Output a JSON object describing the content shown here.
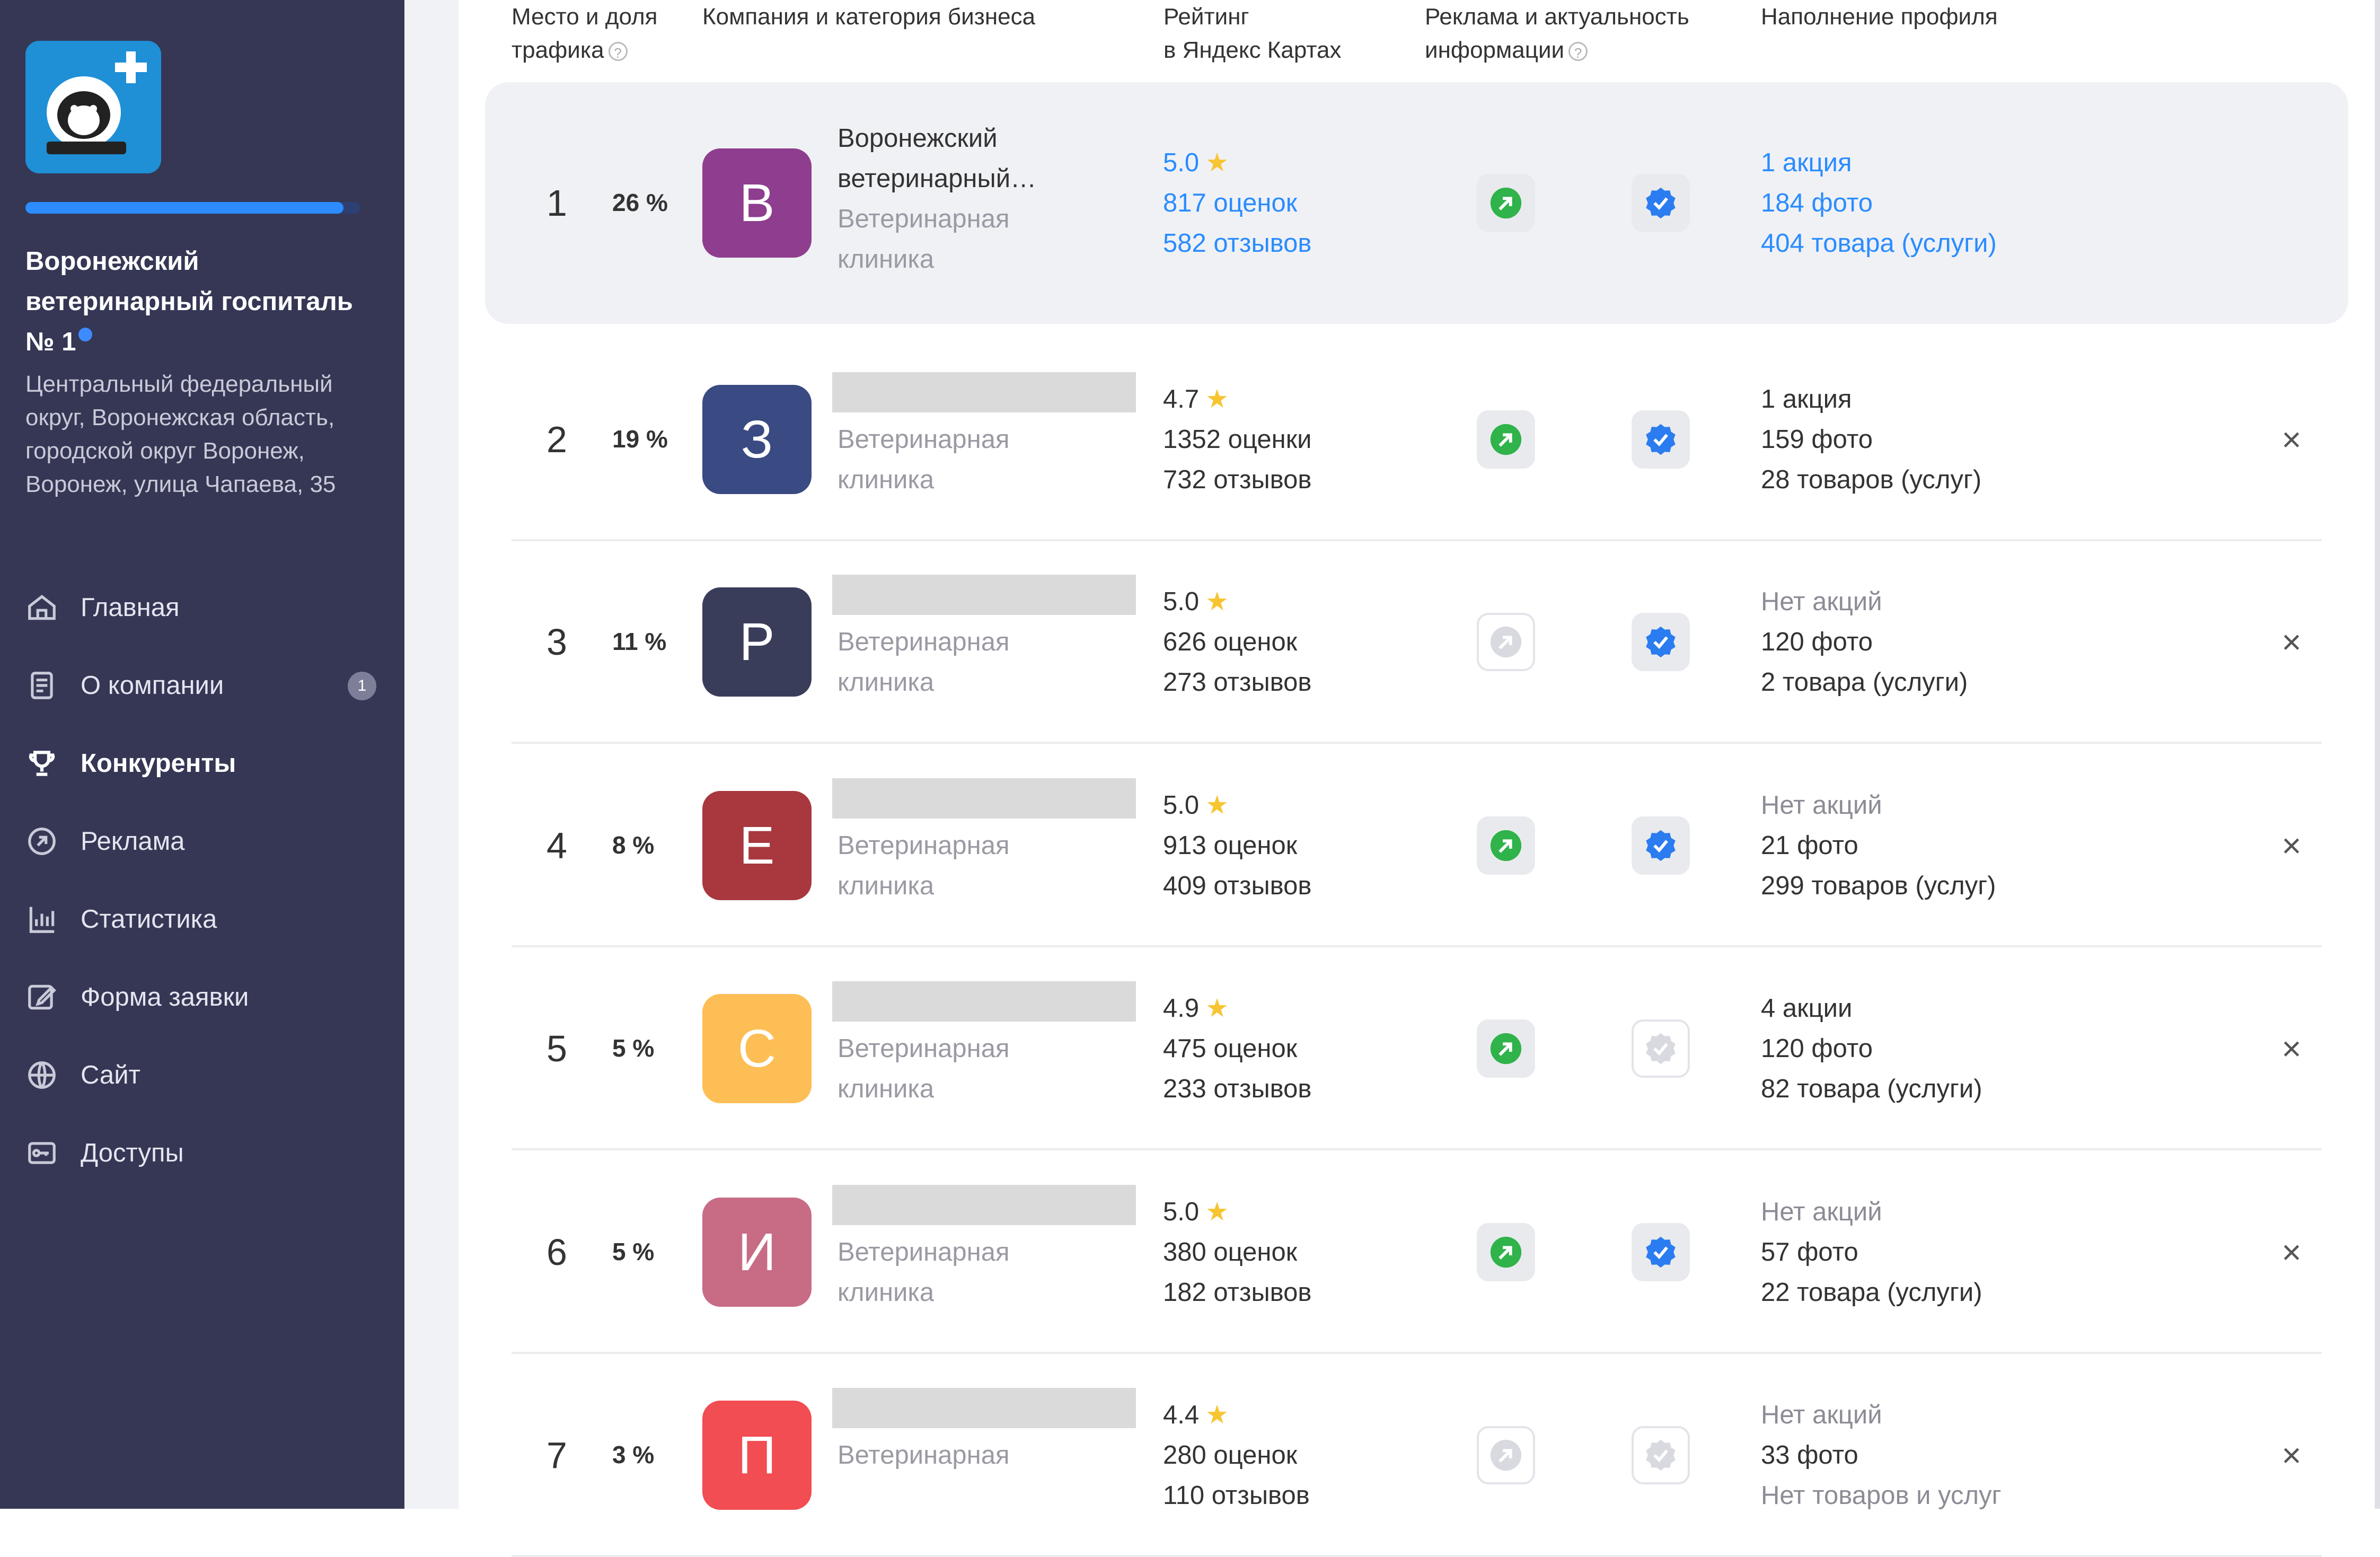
{
  "sidebar": {
    "company_name": "Воронежский ветеринарный госпиталь № 1",
    "address": "Центральный федеральный округ, Воронежская область, городской округ Воронеж, Воронеж, улица Чапаева, 35",
    "progress": 0.95,
    "nav": [
      {
        "label": "Главная",
        "icon": "home-icon"
      },
      {
        "label": "О компании",
        "icon": "document-icon",
        "badge": "1"
      },
      {
        "label": "Конкуренты",
        "icon": "trophy-icon",
        "active": true
      },
      {
        "label": "Реклама",
        "icon": "ads-icon"
      },
      {
        "label": "Статистика",
        "icon": "chart-icon"
      },
      {
        "label": "Форма заявки",
        "icon": "edit-icon"
      },
      {
        "label": "Сайт",
        "icon": "globe-icon"
      },
      {
        "label": "Доступы",
        "icon": "key-icon"
      }
    ]
  },
  "table": {
    "headers": {
      "place_line1": "Место и доля",
      "place_line2": "трафика",
      "company": "Компания и категория бизнеса",
      "rating_line1": "Рейтинг",
      "rating_line2": "в Яндекс Картах",
      "ads_line1": "Реклама и актуальность",
      "ads_line2": "информации",
      "profile": "Наполнение профиля"
    },
    "rows": [
      {
        "rank": "1",
        "share": "26 %",
        "letter": "В",
        "color": "#8e3d8f",
        "name": "Воронежский ветеринарный…",
        "category1": "Ветеринарная",
        "category2": "клиника",
        "rating": "5.0",
        "ratings_count": "817 оценок",
        "reviews": "582 отзывов",
        "ads": true,
        "verified": true,
        "promo": "1 акция",
        "photos": "184 фото",
        "goods": "404 товара (услуги)"
      },
      {
        "rank": "2",
        "share": "19 %",
        "letter": "З",
        "color": "#3a4a82",
        "category1": "Ветеринарная",
        "category2": "клиника",
        "rating": "4.7",
        "ratings_count": "1352 оценки",
        "reviews": "732 отзывов",
        "ads": true,
        "verified": true,
        "promo": "1 акция",
        "photos": "159 фото",
        "goods": "28 товаров (услуг)"
      },
      {
        "rank": "3",
        "share": "11 %",
        "letter": "Р",
        "color": "#3a3d5a",
        "category1": "Ветеринарная",
        "category2": "клиника",
        "rating": "5.0",
        "ratings_count": "626 оценок",
        "reviews": "273 отзывов",
        "ads": false,
        "verified": true,
        "promo": "Нет акций",
        "photos": "120 фото",
        "goods": "2 товара (услуги)"
      },
      {
        "rank": "4",
        "share": "8 %",
        "letter": "Е",
        "color": "#a8383e",
        "category1": "Ветеринарная",
        "category2": "клиника",
        "rating": "5.0",
        "ratings_count": "913 оценок",
        "reviews": "409 отзывов",
        "ads": true,
        "verified": true,
        "promo": "Нет акций",
        "photos": "21 фото",
        "goods": "299 товаров (услуг)"
      },
      {
        "rank": "5",
        "share": "5 %",
        "letter": "С",
        "color": "#fdbe55",
        "category1": "Ветеринарная",
        "category2": "клиника",
        "rating": "4.9",
        "ratings_count": "475 оценок",
        "reviews": "233 отзывов",
        "ads": true,
        "verified": false,
        "promo": "4 акции",
        "photos": "120 фото",
        "goods": "82 товара (услуги)"
      },
      {
        "rank": "6",
        "share": "5 %",
        "letter": "И",
        "color": "#c86b85",
        "category1": "Ветеринарная",
        "category2": "клиника",
        "rating": "5.0",
        "ratings_count": "380 оценок",
        "reviews": "182 отзывов",
        "ads": true,
        "verified": true,
        "promo": "Нет акций",
        "photos": "57 фото",
        "goods": "22 товара (услуги)"
      },
      {
        "rank": "7",
        "share": "3 %",
        "letter": "П",
        "color": "#f14d52",
        "category1": "Ветеринарная",
        "category2": "",
        "rating": "4.4",
        "ratings_count": "280 оценок",
        "reviews": "110 отзывов",
        "ads": false,
        "verified": false,
        "promo": "Нет акций",
        "photos": "33 фото",
        "goods": "Нет товаров и услуг"
      }
    ]
  }
}
